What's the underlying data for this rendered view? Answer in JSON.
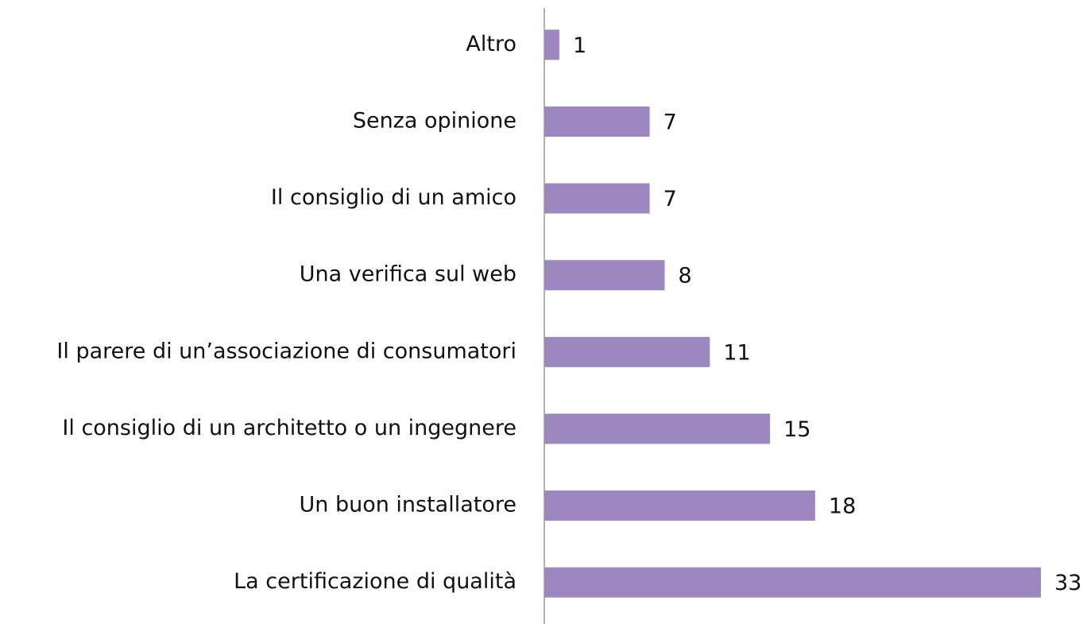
{
  "chart_data": {
    "type": "barh",
    "categories": [
      "Altro",
      "Senza opinione",
      "Il consiglio di un amico",
      "Una verifica sul web",
      "Il parere di un’associazione di consumatori",
      "Il consiglio di un architetto o un ingegnere",
      "Un buon installatore",
      "La certificazione di qualità"
    ],
    "values": [
      1,
      7,
      7,
      8,
      11,
      15,
      18,
      33
    ],
    "color": "#9d87c1",
    "xlim": [
      0,
      33
    ]
  }
}
